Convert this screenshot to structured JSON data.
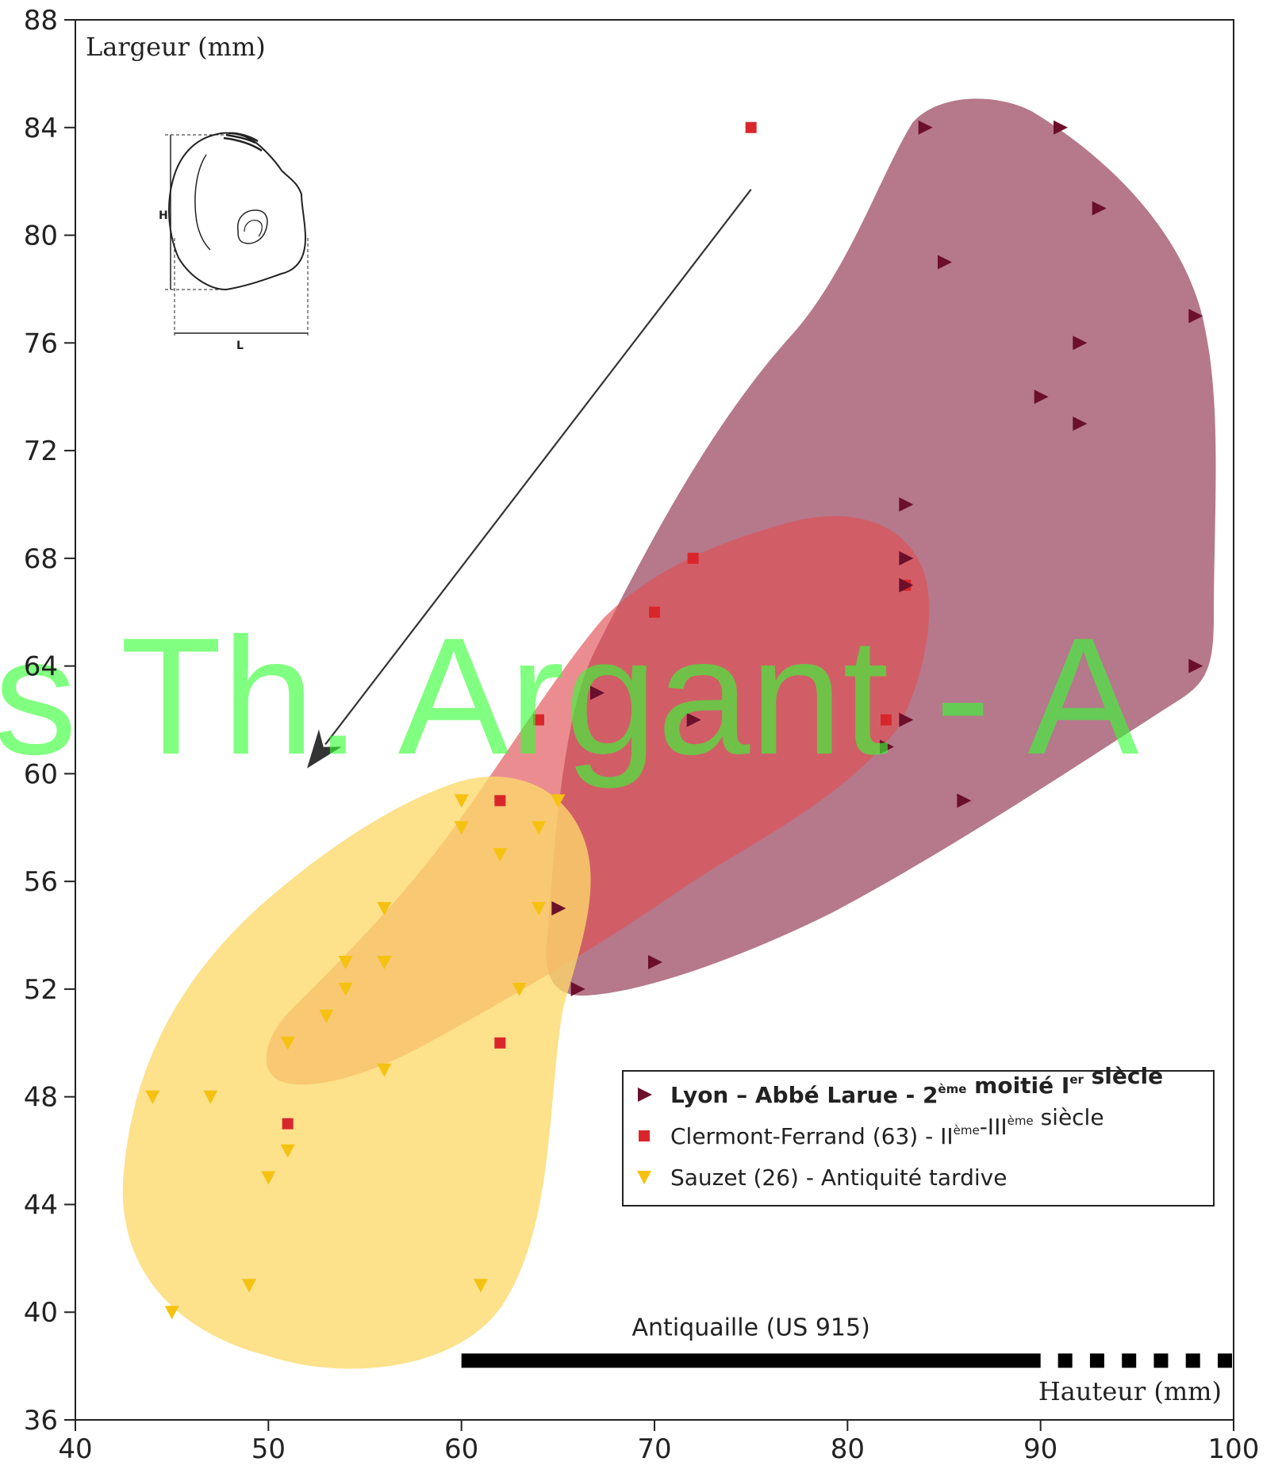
{
  "chart_data": {
    "type": "scatter",
    "xlim": [
      40,
      100
    ],
    "ylim": [
      36,
      88
    ],
    "x_ticks": [
      "40",
      "50",
      "60",
      "70",
      "80",
      "90",
      "100"
    ],
    "y_ticks": [
      "36",
      "40",
      "44",
      "48",
      "52",
      "56",
      "60",
      "64",
      "68",
      "72",
      "76",
      "80",
      "84",
      "88"
    ],
    "xlabel": "Hauteur (mm)",
    "ylabel": "Largeur (mm)",
    "grid": false,
    "legend_position": "bottom-right",
    "series": [
      {
        "name": "Lyon – Abbé Larue - 2ème moitié Ier siècle",
        "legend": {
          "main": "Lyon – Abbé Larue - 2",
          "sup1": "ème",
          "mid": " moitié I",
          "sup2": "er",
          "end": " siècle"
        },
        "marker": "triangle-right",
        "color": "#6b0f2a",
        "hull_color": "#9e4b64",
        "points": [
          [
            84,
            84
          ],
          [
            91,
            84
          ],
          [
            93,
            81
          ],
          [
            85,
            79
          ],
          [
            98,
            77
          ],
          [
            92,
            76
          ],
          [
            90,
            74
          ],
          [
            92,
            73
          ],
          [
            83,
            70
          ],
          [
            83,
            68
          ],
          [
            83,
            67
          ],
          [
            98,
            64
          ],
          [
            67,
            63
          ],
          [
            72,
            62
          ],
          [
            83,
            62
          ],
          [
            82,
            61
          ],
          [
            86,
            59
          ],
          [
            65,
            55
          ],
          [
            70,
            53
          ],
          [
            66,
            52
          ]
        ]
      },
      {
        "name": "Clermont-Ferrand (63) - IIème-IIIème siècle",
        "legend": {
          "main": "Clermont-Ferrand (63)  - II",
          "sup1": "ème",
          "mid": "-III",
          "sup2": "ème",
          "end": " siècle"
        },
        "marker": "square",
        "color": "#d9262b",
        "hull_color": "#e05055",
        "points": [
          [
            75,
            84
          ],
          [
            72,
            68
          ],
          [
            83,
            67
          ],
          [
            70,
            66
          ],
          [
            64,
            62
          ],
          [
            82,
            62
          ],
          [
            62,
            59
          ],
          [
            62,
            50
          ],
          [
            51,
            47
          ]
        ]
      },
      {
        "name": "Sauzet (26) - Antiquité tardive",
        "legend": {
          "main": "Sauzet (26) - Antiquité tardive"
        },
        "marker": "triangle-down",
        "color": "#f5c211",
        "hull_color": "#fcd96a",
        "points": [
          [
            60,
            59
          ],
          [
            65,
            59
          ],
          [
            60,
            58
          ],
          [
            64,
            58
          ],
          [
            62,
            57
          ],
          [
            56,
            55
          ],
          [
            64,
            55
          ],
          [
            54,
            53
          ],
          [
            56,
            53
          ],
          [
            54,
            52
          ],
          [
            63,
            52
          ],
          [
            53,
            51
          ],
          [
            51,
            50
          ],
          [
            56,
            49
          ],
          [
            44,
            48
          ],
          [
            47,
            48
          ],
          [
            51,
            46
          ],
          [
            50,
            45
          ],
          [
            49,
            41
          ],
          [
            61,
            41
          ],
          [
            45,
            40
          ]
        ]
      }
    ],
    "annotations": {
      "range_label": "Antiquaille (US 915)",
      "range_solid": [
        60,
        90
      ],
      "range_dashed": [
        90,
        100
      ],
      "range_y": 38.2,
      "arrow_from": [
        75,
        81.7
      ],
      "arrow_to": [
        52,
        60.2
      ]
    },
    "inset_labels": {
      "height": "H",
      "width": "L"
    },
    "watermark": "s Th. Argant - A"
  },
  "colors": {
    "axis": "#222222",
    "arrow": "#333333"
  }
}
